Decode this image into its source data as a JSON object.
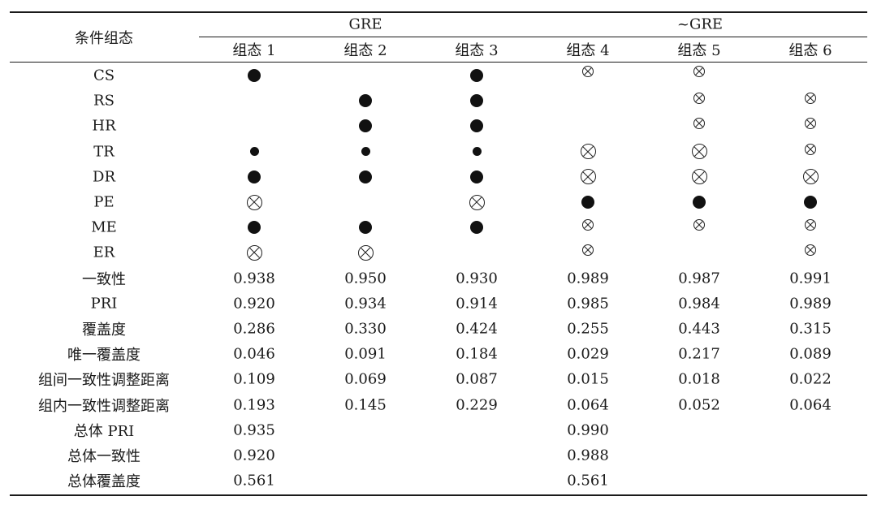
{
  "header": {
    "corner_label": "条件组态",
    "groups": [
      "GRE",
      "~GRE"
    ],
    "configs": [
      "组态 1",
      "组态 2",
      "组态 3",
      "组态 4",
      "组态 5",
      "组态 6"
    ]
  },
  "legend_note": {
    "filled_big": "core-present",
    "filled_small": "peripheral-present",
    "crossed_big": "core-absent",
    "crossed_small": "peripheral-absent"
  },
  "condition_rows": [
    {
      "label": "CS",
      "cells": [
        "core-present",
        "",
        "core-present",
        "peripheral-absent",
        "peripheral-absent",
        ""
      ]
    },
    {
      "label": "RS",
      "cells": [
        "",
        "core-present",
        "core-present",
        "",
        "peripheral-absent",
        "peripheral-absent"
      ]
    },
    {
      "label": "HR",
      "cells": [
        "",
        "core-present",
        "core-present",
        "",
        "peripheral-absent",
        "peripheral-absent"
      ]
    },
    {
      "label": "TR",
      "cells": [
        "peripheral-present",
        "peripheral-present",
        "peripheral-present",
        "core-absent",
        "core-absent",
        "peripheral-absent"
      ]
    },
    {
      "label": "DR",
      "cells": [
        "core-present",
        "core-present",
        "core-present",
        "core-absent",
        "core-absent",
        "core-absent"
      ]
    },
    {
      "label": "PE",
      "cells": [
        "core-absent",
        "",
        "core-absent",
        "core-present",
        "core-present",
        "core-present"
      ]
    },
    {
      "label": "ME",
      "cells": [
        "core-present",
        "core-present",
        "core-present",
        "peripheral-absent",
        "peripheral-absent",
        "peripheral-absent"
      ]
    },
    {
      "label": "ER",
      "cells": [
        "core-absent",
        "core-absent",
        "",
        "peripheral-absent",
        "",
        "peripheral-absent"
      ]
    }
  ],
  "stat_rows": [
    {
      "label": "一致性",
      "values": [
        "0.938",
        "0.950",
        "0.930",
        "0.989",
        "0.987",
        "0.991"
      ]
    },
    {
      "label": "PRI",
      "values": [
        "0.920",
        "0.934",
        "0.914",
        "0.985",
        "0.984",
        "0.989"
      ]
    },
    {
      "label": "覆盖度",
      "values": [
        "0.286",
        "0.330",
        "0.424",
        "0.255",
        "0.443",
        "0.315"
      ]
    },
    {
      "label": "唯一覆盖度",
      "values": [
        "0.046",
        "0.091",
        "0.184",
        "0.029",
        "0.217",
        "0.089"
      ]
    },
    {
      "label": "组间一致性调整距离",
      "values": [
        "0.109",
        "0.069",
        "0.087",
        "0.015",
        "0.018",
        "0.022"
      ]
    },
    {
      "label": "组内一致性调整距离",
      "values": [
        "0.193",
        "0.145",
        "0.229",
        "0.064",
        "0.052",
        "0.064"
      ]
    }
  ],
  "overall_rows": [
    {
      "label": "总体 PRI",
      "values": [
        "0.935",
        "0.990"
      ]
    },
    {
      "label": "总体一致性",
      "values": [
        "0.920",
        "0.988"
      ]
    },
    {
      "label": "总体覆盖度",
      "values": [
        "0.561",
        "0.561"
      ]
    }
  ]
}
